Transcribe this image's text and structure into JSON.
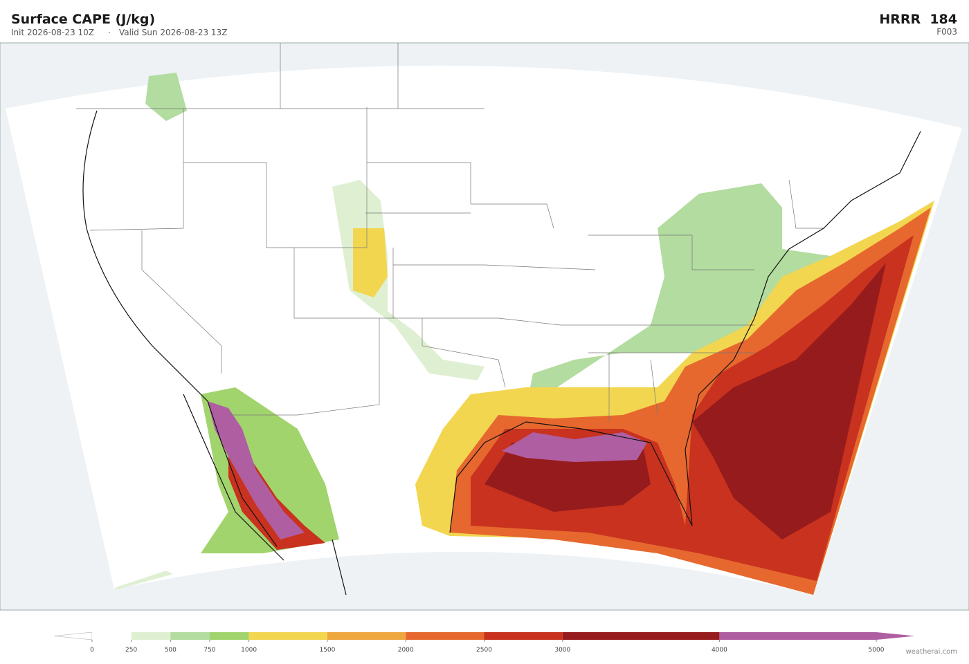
{
  "header": {
    "title": "Surface CAPE  (J/kg)",
    "init": "Init 2026-08-23 10Z",
    "separator": "·",
    "valid": "Valid Sun 2026-08-23 13Z",
    "model": "HRRR  184",
    "forecast_hour": "F003"
  },
  "colorbar": {
    "xlim": [
      0,
      5000
    ],
    "ticks": [
      0,
      250,
      500,
      750,
      1000,
      1500,
      2000,
      2500,
      3000,
      4000,
      5000
    ],
    "colors": [
      "#ffffff",
      "#dff0d2",
      "#b3dca0",
      "#a2d46e",
      "#f2d650",
      "#eea63e",
      "#e6682e",
      "#c8321f",
      "#961b1c",
      "#b05ea2"
    ]
  },
  "credit": "weatherai.com"
}
